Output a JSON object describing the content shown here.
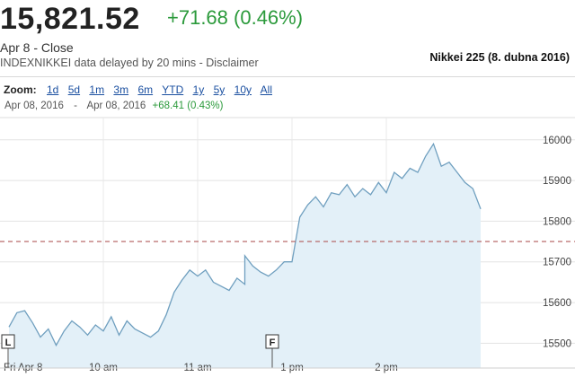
{
  "quote": {
    "price": "15,821.52",
    "change": "+71.68 (0.46%)",
    "date_line": "Apr 8 - Close",
    "disclaimer": "INDEXNIKKEI data delayed by 20 mins - Disclaimer",
    "caption": "Nikkei 225 (8. dubna 2016)"
  },
  "zoom": {
    "label": "Zoom:",
    "options": [
      "1d",
      "5d",
      "1m",
      "3m",
      "6m",
      "YTD",
      "1y",
      "5y",
      "10y",
      "All"
    ]
  },
  "range": {
    "from": "Apr 08, 2016",
    "dash": "-",
    "to": "Apr 08, 2016",
    "change": "+68.41 (0.43%)"
  },
  "colors": {
    "line": "#6f9fbf",
    "fill": "#e3f0f8",
    "positive": "#2b9a3b",
    "prev_close": "#b25b5b"
  },
  "chart_data": {
    "type": "area",
    "x_tick_labels": [
      "Fri Apr 8",
      "10 am",
      "11 am",
      "1 pm",
      "2 pm"
    ],
    "y_ticks": [
      15500,
      15600,
      15700,
      15800,
      15900,
      16000
    ],
    "ylim": [
      15470,
      16030
    ],
    "previous_close": 15750,
    "markers": [
      "L",
      "F"
    ],
    "x": [
      "09:00",
      "09:05",
      "09:10",
      "09:15",
      "09:20",
      "09:25",
      "09:30",
      "09:35",
      "09:40",
      "09:45",
      "09:50",
      "09:55",
      "10:00",
      "10:05",
      "10:10",
      "10:15",
      "10:20",
      "10:25",
      "10:30",
      "10:35",
      "10:40",
      "10:45",
      "10:50",
      "10:55",
      "11:00",
      "11:05",
      "11:10",
      "11:15",
      "11:20",
      "11:25",
      "11:30",
      "12:30",
      "12:35",
      "12:40",
      "12:45",
      "12:50",
      "12:55",
      "13:00",
      "13:05",
      "13:10",
      "13:15",
      "13:20",
      "13:25",
      "13:30",
      "13:35",
      "13:40",
      "13:45",
      "13:50",
      "13:55",
      "14:00",
      "14:05",
      "14:10",
      "14:15",
      "14:20",
      "14:25",
      "14:30",
      "14:35",
      "14:40",
      "14:45",
      "14:50",
      "14:55",
      "15:00"
    ],
    "values": [
      15540,
      15575,
      15580,
      15550,
      15515,
      15535,
      15495,
      15530,
      15555,
      15540,
      15520,
      15545,
      15530,
      15565,
      15520,
      15555,
      15535,
      15525,
      15515,
      15530,
      15570,
      15625,
      15655,
      15680,
      15665,
      15680,
      15650,
      15640,
      15630,
      15660,
      15645,
      15715,
      15690,
      15675,
      15665,
      15680,
      15700,
      15700,
      15810,
      15840,
      15860,
      15835,
      15870,
      15865,
      15890,
      15860,
      15880,
      15865,
      15895,
      15870,
      15920,
      15905,
      15930,
      15920,
      15960,
      15990,
      15935,
      15945,
      15920,
      15895,
      15880,
      15830
    ]
  }
}
